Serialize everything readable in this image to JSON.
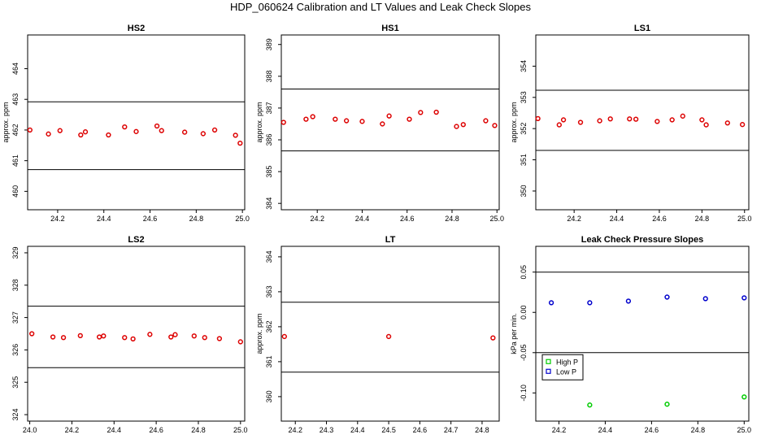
{
  "page_title": "HDP_060624  Calibration and LT Values and Leak Check Slopes",
  "chart_data": [
    {
      "id": "hs2",
      "type": "scatter",
      "title": "HS2",
      "xlabel": "",
      "ylabel": "approx. ppm",
      "xlim": [
        24.07,
        25.01
      ],
      "ylim": [
        459.4,
        465.1
      ],
      "xticks": [
        "24.2",
        "24.4",
        "24.6",
        "24.8",
        "25.0"
      ],
      "yticks": [
        "460",
        "461",
        "462",
        "463",
        "464"
      ],
      "hlines": [
        462.92,
        460.71
      ],
      "series": [
        {
          "color": "#dd0000",
          "x": [
            24.08,
            24.16,
            24.21,
            24.3,
            24.32,
            24.42,
            24.49,
            24.54,
            24.63,
            24.65,
            24.75,
            24.83,
            24.88,
            24.97,
            24.99
          ],
          "y": [
            462.0,
            461.87,
            461.98,
            461.84,
            461.94,
            461.84,
            462.1,
            461.95,
            462.13,
            461.98,
            461.93,
            461.88,
            462.0,
            461.83,
            461.57
          ]
        }
      ]
    },
    {
      "id": "hs1",
      "type": "scatter",
      "title": "HS1",
      "xlabel": "",
      "ylabel": "approx. ppm",
      "xlim": [
        24.04,
        25.01
      ],
      "ylim": [
        383.8,
        389.3
      ],
      "xticks": [
        "24.2",
        "24.4",
        "24.6",
        "24.8",
        "25.0"
      ],
      "yticks": [
        "384",
        "385",
        "386",
        "387",
        "388",
        "389"
      ],
      "hlines": [
        387.6,
        385.65
      ],
      "series": [
        {
          "color": "#dd0000",
          "x": [
            24.05,
            24.15,
            24.18,
            24.28,
            24.33,
            24.4,
            24.49,
            24.52,
            24.61,
            24.66,
            24.73,
            24.82,
            24.85,
            24.95,
            24.99
          ],
          "y": [
            386.55,
            386.65,
            386.73,
            386.65,
            386.6,
            386.58,
            386.5,
            386.75,
            386.65,
            386.86,
            386.87,
            386.42,
            386.48,
            386.6,
            386.45
          ]
        }
      ]
    },
    {
      "id": "ls1",
      "type": "scatter",
      "title": "LS1",
      "xlabel": "",
      "ylabel": "approx. ppm",
      "xlim": [
        24.02,
        25.02
      ],
      "ylim": [
        349.4,
        355.0
      ],
      "xticks": [
        "24.2",
        "24.4",
        "24.6",
        "24.8",
        "25.0"
      ],
      "yticks": [
        "350",
        "351",
        "352",
        "353",
        "354"
      ],
      "hlines": [
        353.23,
        351.3
      ],
      "series": [
        {
          "color": "#dd0000",
          "x": [
            24.03,
            24.13,
            24.15,
            24.23,
            24.32,
            24.37,
            24.46,
            24.49,
            24.59,
            24.66,
            24.71,
            24.8,
            24.82,
            24.92,
            24.99
          ],
          "y": [
            352.32,
            352.12,
            352.28,
            352.2,
            352.25,
            352.31,
            352.31,
            352.3,
            352.23,
            352.28,
            352.4,
            352.28,
            352.12,
            352.18,
            352.13
          ]
        }
      ]
    },
    {
      "id": "ls2",
      "type": "scatter",
      "title": "LS2",
      "xlabel": "",
      "ylabel": "",
      "xlim": [
        23.99,
        25.02
      ],
      "ylim": [
        323.8,
        329.2
      ],
      "xticks": [
        "24.0",
        "24.2",
        "24.4",
        "24.6",
        "24.8",
        "25.0"
      ],
      "yticks": [
        "324",
        "325",
        "326",
        "327",
        "328",
        "329"
      ],
      "hlines": [
        327.35,
        325.45
      ],
      "series": [
        {
          "color": "#dd0000",
          "x": [
            24.01,
            24.11,
            24.16,
            24.24,
            24.33,
            24.35,
            24.45,
            24.49,
            24.57,
            24.67,
            24.69,
            24.78,
            24.83,
            24.9,
            25.0
          ],
          "y": [
            326.5,
            326.4,
            326.38,
            326.44,
            326.4,
            326.43,
            326.38,
            326.34,
            326.48,
            326.4,
            326.47,
            326.43,
            326.38,
            326.35,
            326.25
          ]
        }
      ]
    },
    {
      "id": "lt",
      "type": "scatter",
      "title": "LT",
      "xlabel": "",
      "ylabel": "approx. ppm",
      "xlim": [
        24.155,
        24.855
      ],
      "ylim": [
        359.3,
        364.3
      ],
      "xticks": [
        "24.2",
        "24.3",
        "24.4",
        "24.5",
        "24.6",
        "24.7",
        "24.8"
      ],
      "yticks": [
        "360",
        "361",
        "362",
        "363",
        "364"
      ],
      "hlines": [
        362.7,
        360.7
      ],
      "series": [
        {
          "color": "#dd0000",
          "x": [
            24.165,
            24.5,
            24.835
          ],
          "y": [
            361.72,
            361.72,
            361.68
          ]
        }
      ]
    },
    {
      "id": "leak",
      "type": "scatter",
      "title": "Leak Check Pressure Slopes",
      "xlabel": "",
      "ylabel": "kPa per min.",
      "xlim": [
        24.1,
        25.02
      ],
      "ylim": [
        -0.135,
        0.082
      ],
      "xticks": [
        "24.2",
        "24.4",
        "24.6",
        "24.8",
        "25.0"
      ],
      "yticks": [
        "-0.10",
        "-0.05",
        "0.00",
        "0.05"
      ],
      "hlines": [
        0.05,
        -0.05
      ],
      "legend": {
        "position": "bottom-left",
        "entries": [
          "High P",
          "Low P"
        ]
      },
      "series": [
        {
          "name": "High P",
          "color": "#00cc00",
          "x": [
            24.333,
            24.667,
            25.0
          ],
          "y": [
            -0.115,
            -0.114,
            -0.105
          ]
        },
        {
          "name": "Low P",
          "color": "#0000cc",
          "x": [
            24.167,
            24.333,
            24.5,
            24.667,
            24.833,
            25.0
          ],
          "y": [
            0.012,
            0.012,
            0.014,
            0.019,
            0.017,
            0.018
          ]
        }
      ]
    }
  ]
}
